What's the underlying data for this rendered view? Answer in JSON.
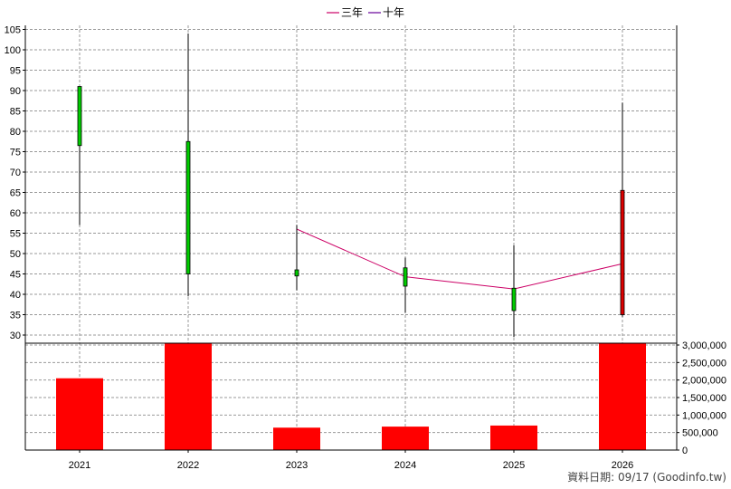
{
  "chart_data": {
    "type": "candlestick",
    "categories": [
      "2021",
      "2022",
      "2023",
      "2024",
      "2025",
      "2026"
    ],
    "price": {
      "ylim": [
        28,
        106
      ],
      "ticks": [
        30,
        35,
        40,
        45,
        50,
        55,
        60,
        65,
        70,
        75,
        80,
        85,
        90,
        95,
        100,
        105
      ],
      "ohlc": [
        {
          "open": 91,
          "high": 91,
          "low": 57,
          "close": 76.5
        },
        {
          "open": 77.5,
          "high": 104,
          "low": 39.5,
          "close": 45
        },
        {
          "open": 46,
          "high": 57,
          "low": 41,
          "close": 44.5
        },
        {
          "open": 46.5,
          "high": 49,
          "low": 35.5,
          "close": 42
        },
        {
          "open": 41.5,
          "high": 52,
          "low": 29.5,
          "close": 36
        },
        {
          "open": 35,
          "high": 87,
          "low": 34.5,
          "close": 65.5
        }
      ],
      "series": [
        {
          "name": "三年",
          "color": "#cc0066",
          "values": [
            null,
            null,
            56,
            44.3,
            41.3,
            47.5
          ]
        },
        {
          "name": "十年",
          "color": "#660099",
          "values": [
            null,
            null,
            null,
            null,
            null,
            null
          ]
        }
      ]
    },
    "volume": {
      "ylim": [
        0,
        3000000
      ],
      "ticks": [
        0,
        500000,
        1000000,
        1500000,
        2000000,
        2500000,
        3000000
      ],
      "tick_labels": [
        "0",
        "500,000",
        "1,000,000",
        "1,500,000",
        "2,000,000",
        "2,500,000",
        "3,000,000"
      ],
      "values": [
        2050000,
        3050000,
        640000,
        670000,
        700000,
        3050000
      ],
      "color": "#ff0000"
    },
    "legend_placement": "top-center",
    "grid": true
  },
  "colors": {
    "up": "#00cc00",
    "down": "#dd0000",
    "volume": "#ff0000",
    "grid": "#999999"
  },
  "footer": "資料日期: 09/17  (Goodinfo.tw)"
}
